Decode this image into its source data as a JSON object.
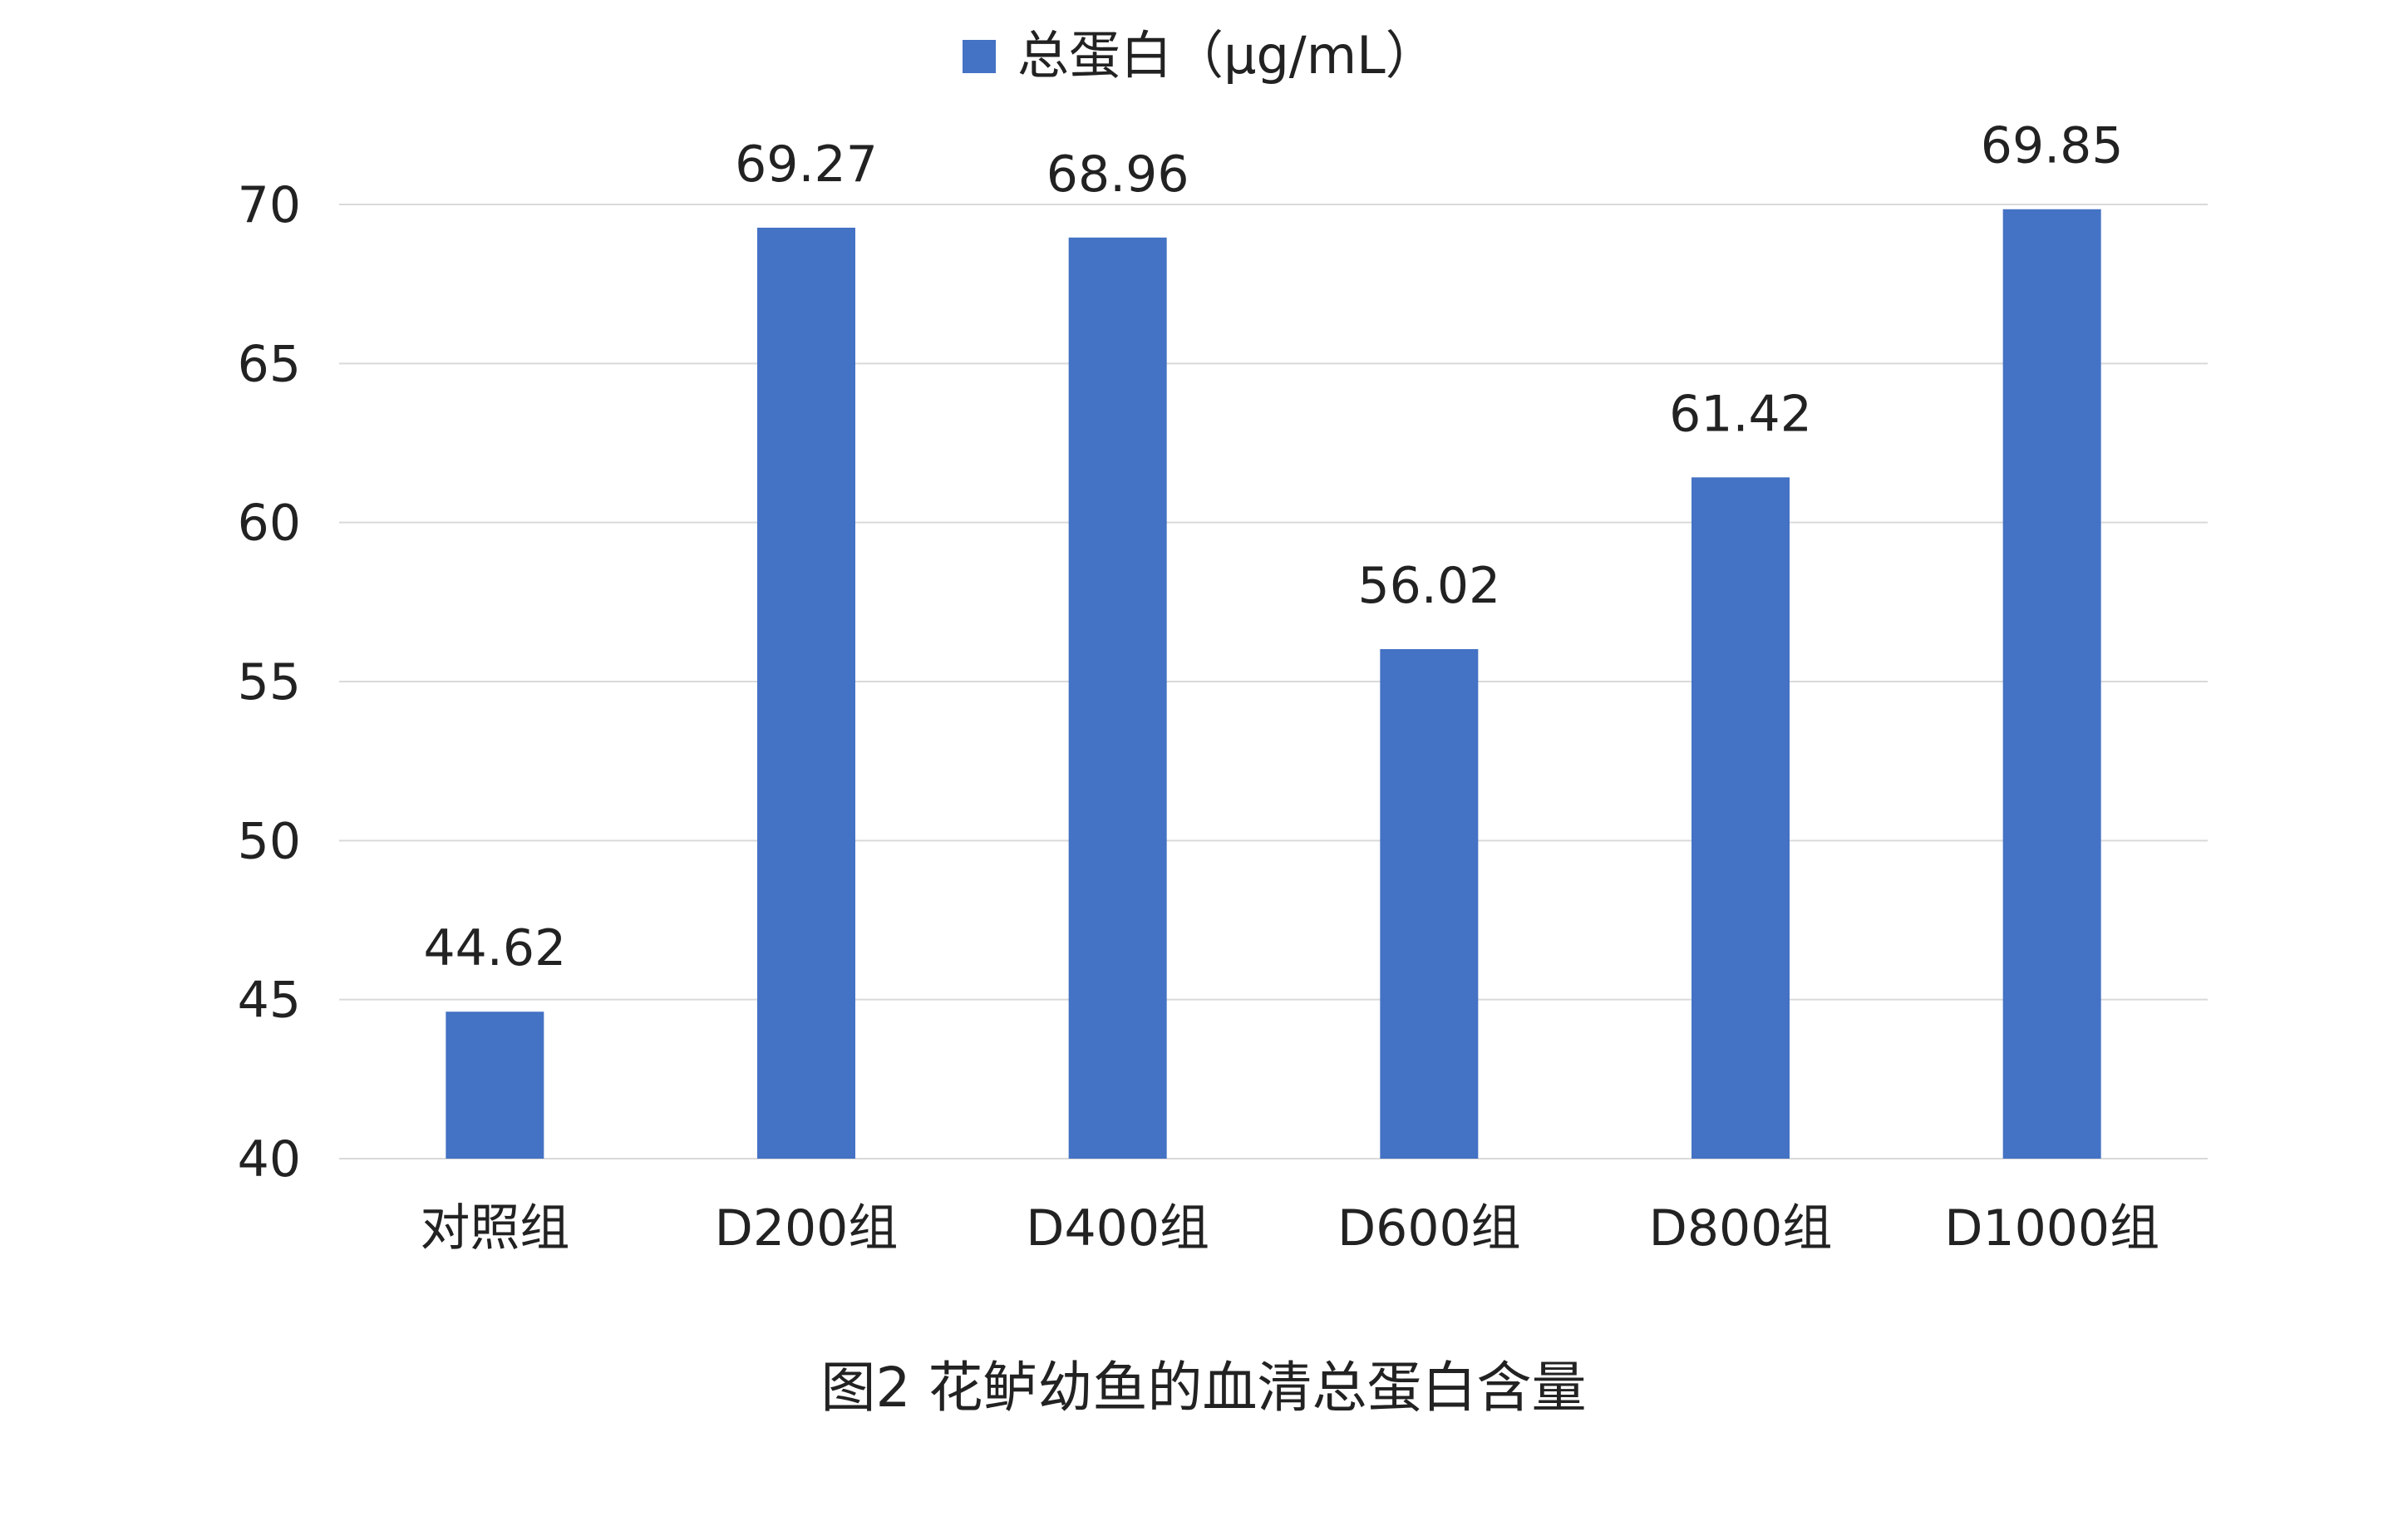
{
  "chart_data": {
    "type": "bar",
    "title": "",
    "caption": "图2 花鲈幼鱼的血清总蛋白含量",
    "xlabel": "",
    "ylabel": "",
    "categories": [
      "对照组",
      "D200组",
      "D400组",
      "D600组",
      "D800组",
      "D1000组"
    ],
    "series": [
      {
        "name": "总蛋白（μg/mL）",
        "values": [
          44.62,
          69.27,
          68.96,
          56.02,
          61.42,
          69.85
        ],
        "color": "#4472C4"
      }
    ],
    "data_labels": [
      "44.62",
      "69.27",
      "68.96",
      "56.02",
      "61.42",
      "69.85"
    ],
    "ylim": [
      40,
      70
    ],
    "yticks": [
      40,
      45,
      50,
      55,
      60,
      65,
      70
    ],
    "gridlines": true,
    "gridline_color": "#D9D9D9",
    "legend_position": "top"
  }
}
